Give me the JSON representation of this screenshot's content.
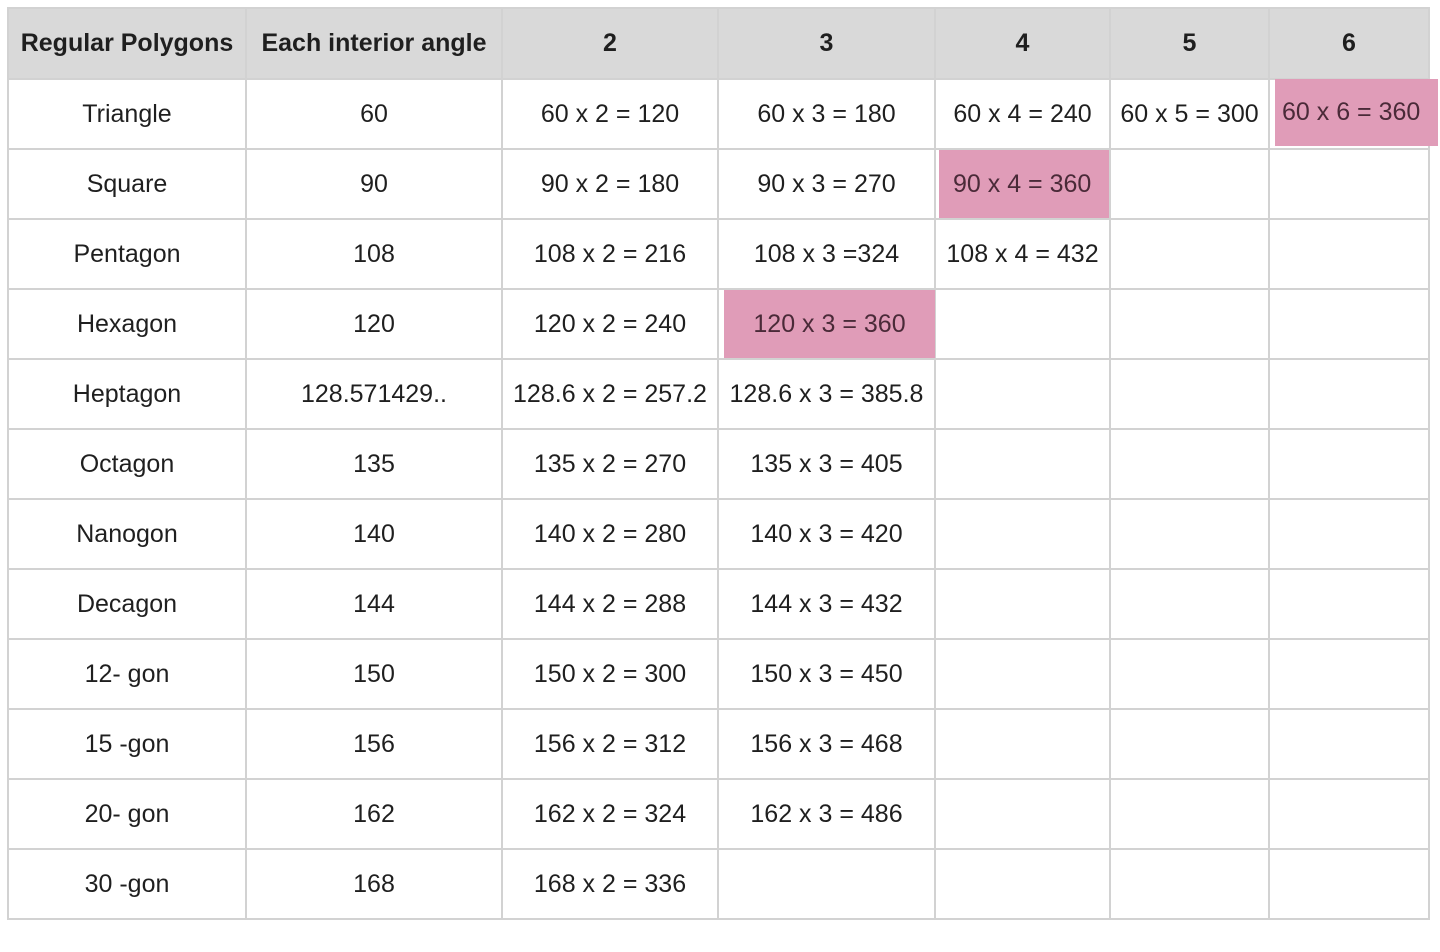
{
  "headers": [
    "Regular Polygons",
    "Each interior angle",
    "2",
    "3",
    "4",
    "5",
    "6"
  ],
  "rows": [
    {
      "name": "Triangle",
      "angle": "60",
      "c2": "60 x 2 = 120",
      "c3": "60 x 3 = 180",
      "c4": "60 x 4 = 240",
      "c5": "60 x 5 = 300",
      "c6": "60 x 6 = 360"
    },
    {
      "name": "Square",
      "angle": "90",
      "c2": "90 x 2 = 180",
      "c3": "90 x 3 = 270",
      "c4": "90 x 4 = 360",
      "c5": "",
      "c6": ""
    },
    {
      "name": "Pentagon",
      "angle": "108",
      "c2": "108 x 2 = 216",
      "c3": "108 x 3 =324",
      "c4": "108 x 4 = 432",
      "c5": "",
      "c6": ""
    },
    {
      "name": "Hexagon",
      "angle": "120",
      "c2": "120 x 2 = 240",
      "c3": "120 x 3 = 360",
      "c4": "",
      "c5": "",
      "c6": ""
    },
    {
      "name": "Heptagon",
      "angle": "128.571429..",
      "c2": "128.6 x 2 = 257.2",
      "c3": "128.6 x 3 = 385.8",
      "c4": "",
      "c5": "",
      "c6": ""
    },
    {
      "name": "Octagon",
      "angle": "135",
      "c2": "135 x 2 = 270",
      "c3": "135 x 3 = 405",
      "c4": "",
      "c5": "",
      "c6": ""
    },
    {
      "name": "Nanogon",
      "angle": "140",
      "c2": "140 x 2 = 280",
      "c3": "140 x 3 = 420",
      "c4": "",
      "c5": "",
      "c6": ""
    },
    {
      "name": "Decagon",
      "angle": "144",
      "c2": "144 x 2 = 288",
      "c3": "144 x 3 = 432",
      "c4": "",
      "c5": "",
      "c6": ""
    },
    {
      "name": "12- gon",
      "angle": "150",
      "c2": "150 x 2 = 300",
      "c3": "150 x 3 = 450",
      "c4": "",
      "c5": "",
      "c6": ""
    },
    {
      "name": "15 -gon",
      "angle": "156",
      "c2": "156 x 2 = 312",
      "c3": "156 x 3 = 468",
      "c4": "",
      "c5": "",
      "c6": ""
    },
    {
      "name": "20- gon",
      "angle": "162",
      "c2": "162 x 2 = 324",
      "c3": "162 x 3 = 486",
      "c4": "",
      "c5": "",
      "c6": ""
    },
    {
      "name": "30 -gon",
      "angle": "168",
      "c2": "168 x 2 = 336",
      "c3": "",
      "c4": "",
      "c5": "",
      "c6": ""
    }
  ],
  "colors": {
    "header_bg": "#d9d9d9",
    "border": "#d2d2d2",
    "highlight": "#e09cb8",
    "highlight_text": "#4a2a38"
  }
}
